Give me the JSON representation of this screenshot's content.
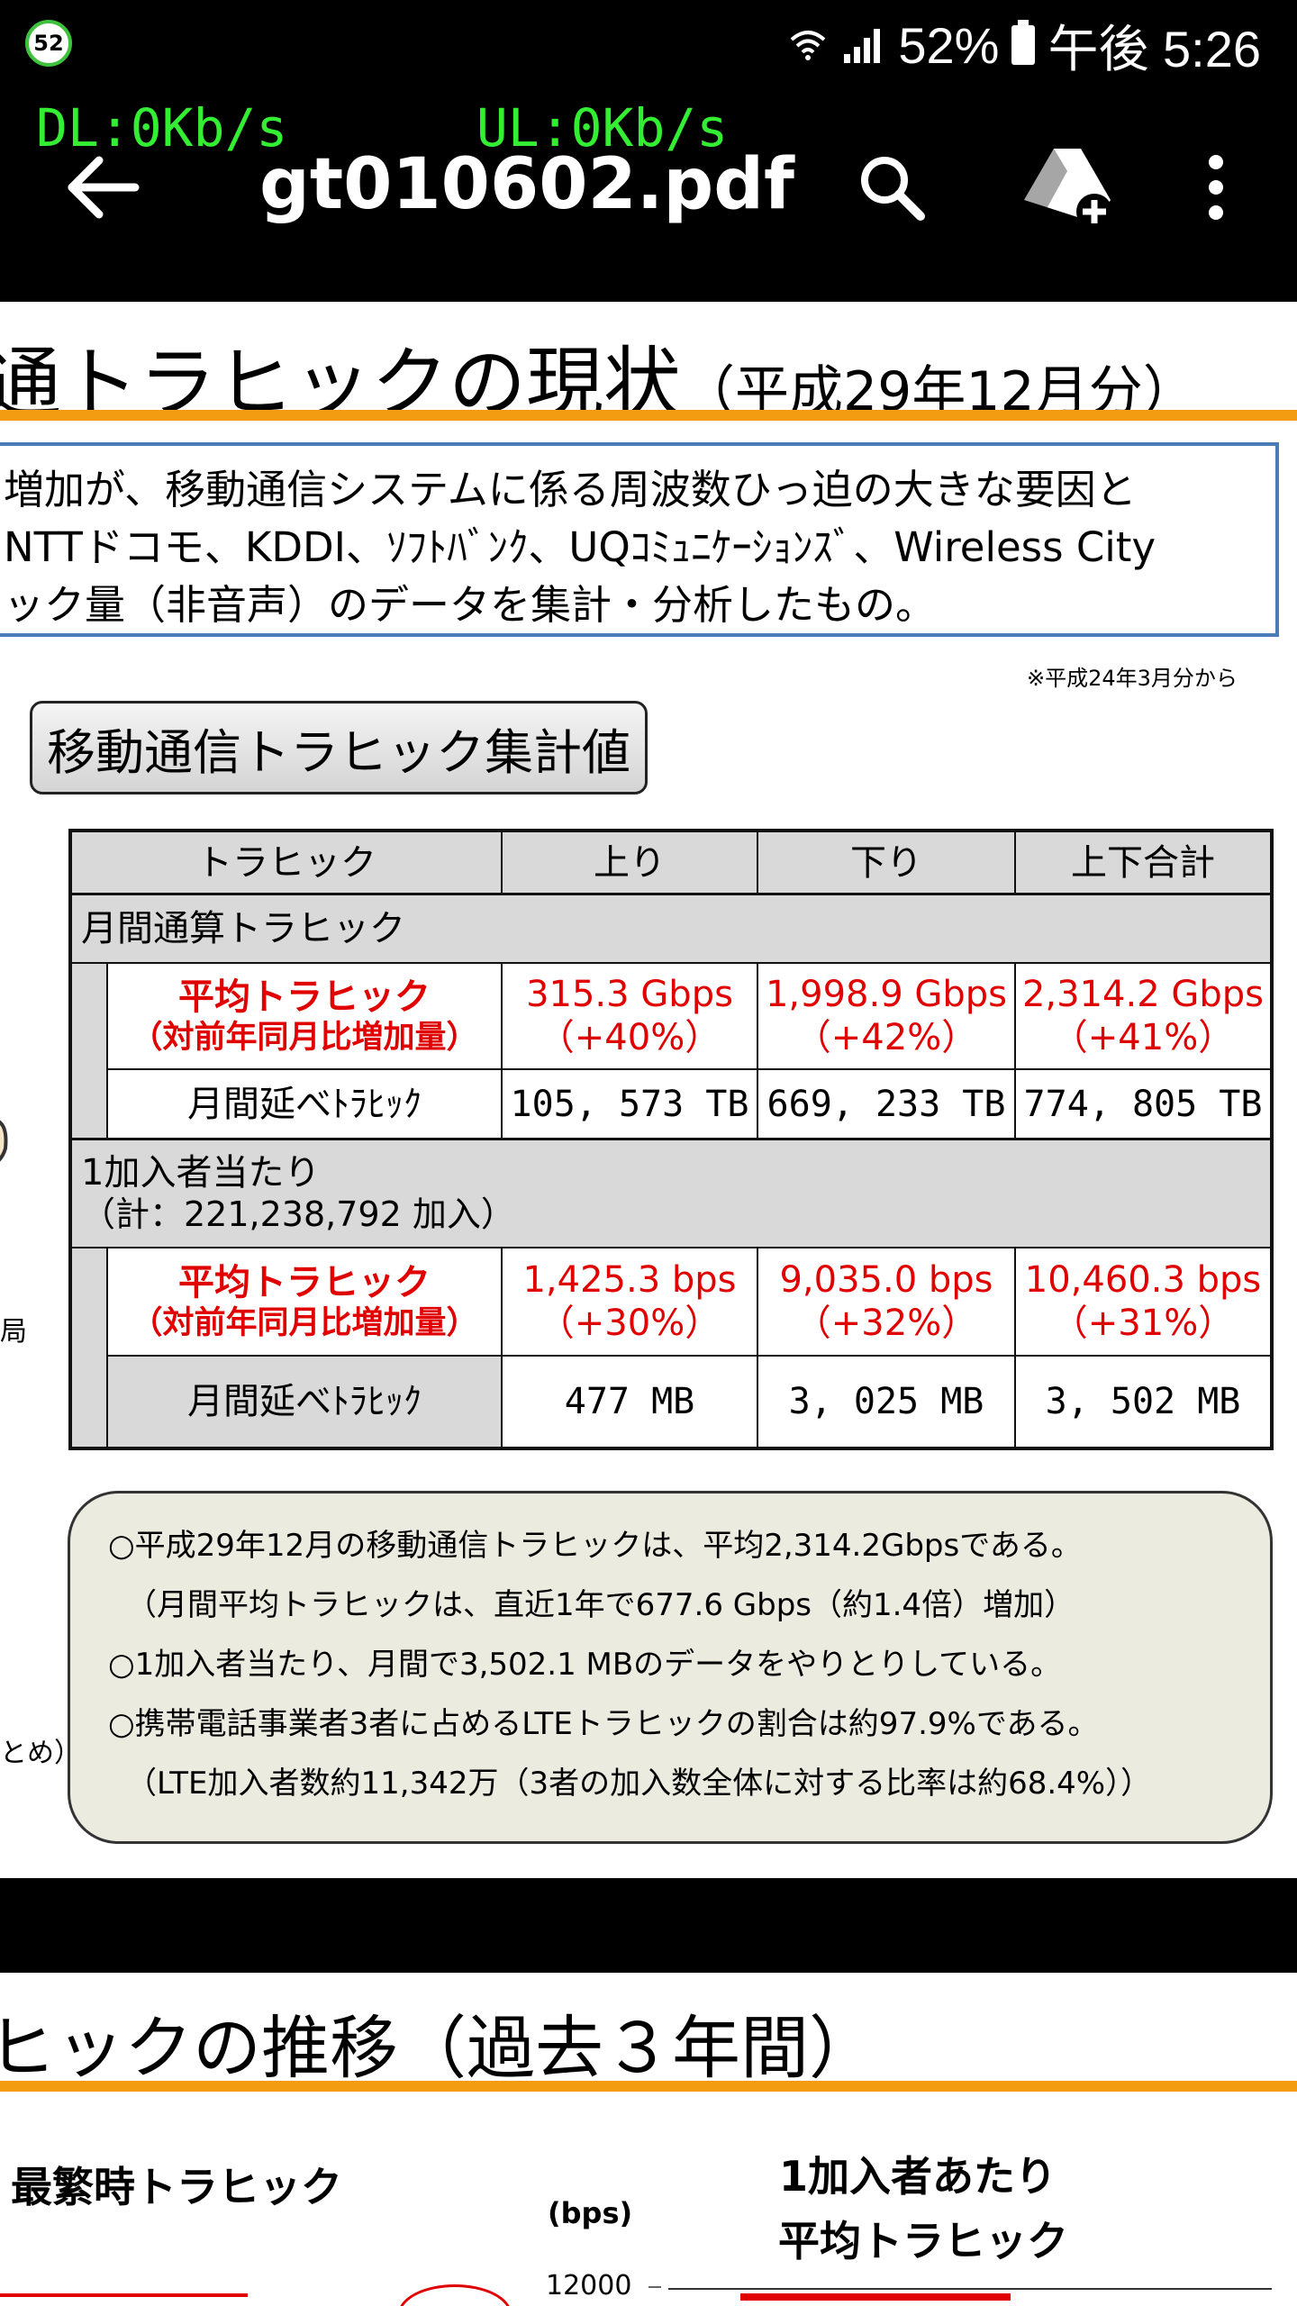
{
  "status_bar": {
    "notification_badge": "52",
    "battery": "52%",
    "time": "午後 5:26"
  },
  "netspeed": {
    "dl": "DL:0Kb/s",
    "ul": "UL:0Kb/s"
  },
  "toolbar": {
    "title": "gt010602.pdf",
    "icons": [
      "back-arrow-icon",
      "search-icon",
      "drive-add-icon",
      "more-vert-icon"
    ]
  },
  "page1": {
    "heading": "通トラヒックの現状",
    "heading_suffix": "（平成29年12月分）",
    "description": [
      "増加が、移動通信システムに係る周波数ひっ迫の大きな要因と",
      "NTTドコモ、KDDI、ｿﾌﾄﾊﾞﾝｸ、UQｺﾐｭﾆｹｰｼｮﾝｽﾞ、Wireless City",
      "ック量（非音声）のデータを集計・分析したもの。"
    ],
    "note": "※平成24年3月分から",
    "section_label": "移動通信トラヒック集計値",
    "table": {
      "headers": [
        "トラヒック",
        "上り",
        "下り",
        "上下合計"
      ],
      "group1_label": "月間通算トラヒック",
      "group1_avg_label": [
        "平均トラヒック",
        "（対前年同月比増加量）"
      ],
      "group1_avg": [
        [
          "315.3 Gbps",
          "（+40%）"
        ],
        [
          "1,998.9 Gbps",
          "（+42%）"
        ],
        [
          "2,314.2 Gbps",
          "（+41%）"
        ]
      ],
      "group1_month_label": "月間延べﾄﾗﾋｯｸ",
      "group1_month": [
        "105, 573 TB",
        "669, 233 TB",
        "774, 805 TB"
      ],
      "group2_label": [
        "1加入者当たり",
        "（計：221,238,792 加入）"
      ],
      "group2_avg_label": [
        "平均トラヒック",
        "（対前年同月比増加量）"
      ],
      "group2_avg": [
        [
          "1,425.3 bps",
          "（+30%）"
        ],
        [
          "9,035.0 bps",
          "（+32%）"
        ],
        [
          "10,460.3 bps",
          "（+31%）"
        ]
      ],
      "group2_month_label": "月間延べﾄﾗﾋｯｸ",
      "group2_month": [
        "477 MB",
        "3, 025 MB",
        "3, 502 MB"
      ]
    },
    "summary": [
      "○平成29年12月の移動通信トラヒックは、平均2,314.2Gbpsである。",
      "（月間平均トラヒックは、直近1年で677.6 Gbps（約1.4倍）増加）",
      "○1加入者当たり、月間で3,502.1 MBのデータをやりとりしている。",
      "○携帯電話事業者3者に占めるLTEトラヒックの割合は約97.9%である。",
      "（LTE加入者数約11,342万（3者の加入数全体に対する比率は約68.4%））"
    ],
    "left_fragments": [
      "局",
      "とめ）"
    ]
  },
  "page2": {
    "heading": "ヒックの推移（過去３年間）",
    "chart_left_title": "最繁時トラヒック",
    "unit_label": "(bps)",
    "chart_right_title": [
      "1加入者あたり",
      "平均トラヒック"
    ],
    "y_tick": "12000"
  },
  "colors": {
    "accent_orange": "#f39c12",
    "box_blue": "#4a7cb8",
    "red_values": "#e00000",
    "netspeed_green": "#33ee33"
  }
}
